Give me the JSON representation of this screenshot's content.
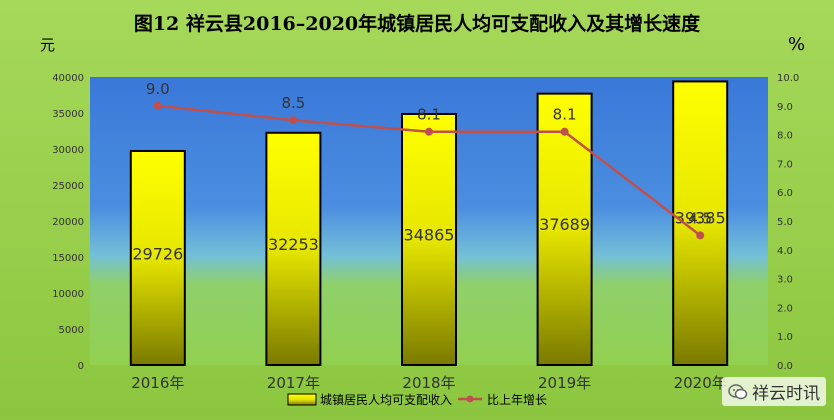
{
  "chart_data": {
    "type": "bar+line",
    "title": "图12  祥云县2016–2020年城镇居民人均可支配收入及其增长速度",
    "categories": [
      "2016年",
      "2017年",
      "2018年",
      "2019年",
      "2020年"
    ],
    "series": [
      {
        "name": "城镇居民人均可支配收入",
        "type": "bar",
        "axis": "left",
        "values": [
          29726,
          32253,
          34865,
          37689,
          39385
        ],
        "labels": [
          "29726",
          "32253",
          "34865",
          "37689",
          "39385"
        ],
        "color": "#ffff00"
      },
      {
        "name": "比上年增长",
        "type": "line",
        "axis": "right",
        "values": [
          9.0,
          8.5,
          8.1,
          8.1,
          4.5
        ],
        "labels": [
          "9.0",
          "8.5",
          "8.1",
          "8.1",
          "4.5"
        ],
        "color": "#c0504d"
      }
    ],
    "y_left": {
      "unit": "元",
      "ylim": [
        0,
        40000
      ],
      "ticks": [
        "0",
        "5000",
        "10000",
        "15000",
        "20000",
        "25000",
        "30000",
        "35000",
        "40000"
      ]
    },
    "y_right": {
      "unit": "%",
      "ylim": [
        0,
        10
      ],
      "ticks": [
        "0.0",
        "1.0",
        "2.0",
        "3.0",
        "4.0",
        "5.0",
        "6.0",
        "7.0",
        "8.0",
        "9.0",
        "10.0"
      ]
    },
    "legend_position": "bottom-center",
    "grid": false
  },
  "watermark": "祥云时讯",
  "colors": {
    "page_background": "#92d050",
    "plot_top": "#3a78d8",
    "plot_bottom": "#92d050",
    "bar_fill_top": "#ffff00",
    "bar_fill_bottom": "#8a8a00",
    "line": "#c0504d"
  }
}
